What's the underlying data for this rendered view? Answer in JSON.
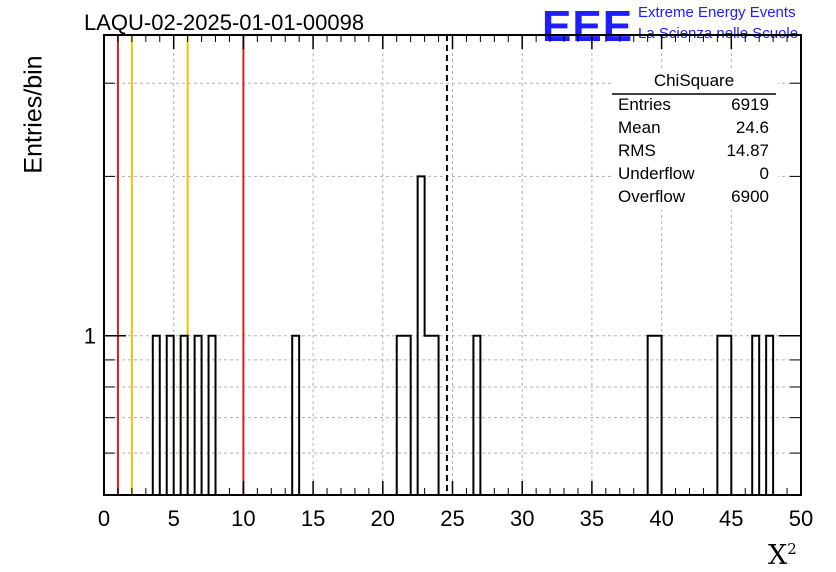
{
  "header": {
    "title": "LAQU-02-2025-01-01-00098",
    "logo": "EEE",
    "brand_line1": "Extreme Energy Events",
    "brand_line2": "La Scienza nelle Scuole"
  },
  "chart_data": {
    "type": "bar",
    "title": "LAQU-02-2025-01-01-00098",
    "xlabel": "X",
    "xlabel_superscript": "2",
    "ylabel": "Entries/bin",
    "xlim": [
      0,
      50
    ],
    "ylog": true,
    "ylim": [
      0.5,
      3.7
    ],
    "grid": true,
    "x_ticks": [
      "0",
      "5",
      "10",
      "15",
      "20",
      "25",
      "30",
      "35",
      "40",
      "45",
      "50"
    ],
    "y_ticks": [
      "1"
    ],
    "bin_width": 0.5,
    "bins": [
      {
        "x0": 3.5,
        "count": 1
      },
      {
        "x0": 4.5,
        "count": 1
      },
      {
        "x0": 5.5,
        "count": 1
      },
      {
        "x0": 6.5,
        "count": 1
      },
      {
        "x0": 7.5,
        "count": 1
      },
      {
        "x0": 13.5,
        "count": 1
      },
      {
        "x0": 21.0,
        "count": 1
      },
      {
        "x0": 21.5,
        "count": 1
      },
      {
        "x0": 22.5,
        "count": 2
      },
      {
        "x0": 23.0,
        "count": 1
      },
      {
        "x0": 23.5,
        "count": 1
      },
      {
        "x0": 26.5,
        "count": 1
      },
      {
        "x0": 39.0,
        "count": 1
      },
      {
        "x0": 39.5,
        "count": 1
      },
      {
        "x0": 44.0,
        "count": 1
      },
      {
        "x0": 44.5,
        "count": 1
      },
      {
        "x0": 46.5,
        "count": 1
      },
      {
        "x0": 47.5,
        "count": 1
      }
    ],
    "reference_lines": [
      {
        "x": 1,
        "color": "#d62020"
      },
      {
        "x": 2,
        "color": "#f2c200"
      },
      {
        "x": 6,
        "color": "#f2c200"
      },
      {
        "x": 10,
        "color": "#d62020"
      }
    ],
    "mean_line": {
      "x": 24.6,
      "style": "dashed",
      "color": "#000000"
    },
    "legend_position": "top-right",
    "stats": {
      "name": "ChiSquare",
      "rows": [
        {
          "label": "Entries",
          "value": "6919"
        },
        {
          "label": "Mean",
          "value": "24.6"
        },
        {
          "label": "RMS",
          "value": "14.87"
        },
        {
          "label": "Underflow",
          "value": "0"
        },
        {
          "label": "Overflow",
          "value": "6900"
        }
      ]
    }
  }
}
